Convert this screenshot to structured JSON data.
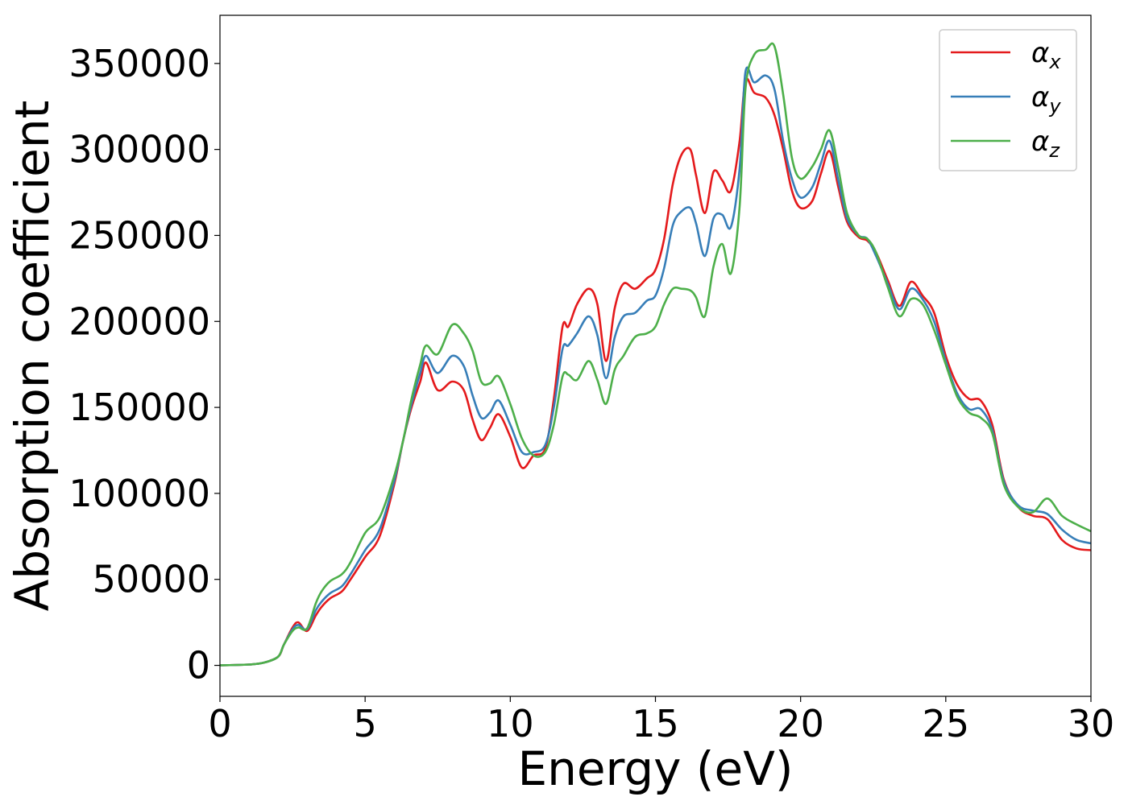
{
  "chart_data": {
    "type": "line",
    "xlabel": "Energy (eV)",
    "ylabel": "Absorption coefficient",
    "xlim": [
      0,
      30
    ],
    "ylim": [
      -18000,
      378000
    ],
    "xticks": [
      0,
      5,
      10,
      15,
      20,
      25,
      30
    ],
    "yticks": [
      0,
      50000,
      100000,
      150000,
      200000,
      250000,
      300000,
      350000
    ],
    "grid": false,
    "legend_position": "top-right",
    "series": [
      {
        "name": "α",
        "subscript": "x",
        "color": "#e41a1c",
        "x": [
          0,
          1,
          1.5,
          2,
          2.2,
          2.5,
          2.7,
          3.0,
          3.3,
          3.5,
          3.8,
          4.2,
          4.5,
          5.0,
          5.5,
          6.0,
          6.3,
          6.6,
          6.9,
          7.1,
          7.5,
          8.0,
          8.4,
          8.7,
          9.0,
          9.3,
          9.6,
          10.0,
          10.4,
          10.8,
          11.2,
          11.5,
          11.8,
          12.0,
          12.3,
          12.7,
          13.0,
          13.3,
          13.6,
          13.9,
          14.3,
          14.7,
          15.0,
          15.3,
          15.6,
          15.9,
          16.2,
          16.4,
          16.7,
          17.0,
          17.3,
          17.6,
          17.9,
          18.1,
          18.4,
          18.8,
          19.1,
          19.4,
          19.7,
          20.0,
          20.4,
          20.7,
          21.0,
          21.3,
          21.6,
          22.0,
          22.3,
          22.6,
          23.0,
          23.4,
          23.8,
          24.2,
          24.6,
          25.0,
          25.4,
          25.8,
          26.2,
          26.6,
          27.0,
          27.5,
          28.0,
          28.5,
          29.0,
          29.5,
          30.0
        ],
        "values": [
          0,
          500,
          1500,
          5000,
          12000,
          22000,
          25000,
          20000,
          29000,
          34000,
          39000,
          43000,
          50000,
          63000,
          75000,
          105000,
          130000,
          150000,
          165000,
          176000,
          160000,
          165000,
          160000,
          143000,
          131000,
          138000,
          146000,
          133000,
          115000,
          122000,
          126000,
          155000,
          197000,
          197000,
          210000,
          219000,
          210000,
          177000,
          208000,
          222000,
          219000,
          225000,
          230000,
          248000,
          280000,
          297000,
          300000,
          285000,
          263000,
          287000,
          282000,
          276000,
          305000,
          340000,
          333000,
          330000,
          320000,
          300000,
          276000,
          266000,
          270000,
          286000,
          299000,
          278000,
          258000,
          249000,
          247000,
          240000,
          224000,
          209000,
          223000,
          215000,
          205000,
          180000,
          163000,
          155000,
          154000,
          140000,
          108000,
          92000,
          87000,
          85000,
          73000,
          68000,
          67000
        ]
      },
      {
        "name": "α",
        "subscript": "y",
        "color": "#377eb8",
        "x": [
          0,
          1,
          1.5,
          2,
          2.2,
          2.5,
          2.7,
          3.0,
          3.3,
          3.5,
          3.8,
          4.2,
          4.5,
          5.0,
          5.5,
          6.0,
          6.3,
          6.6,
          6.9,
          7.1,
          7.5,
          8.0,
          8.4,
          8.7,
          9.0,
          9.3,
          9.6,
          10.0,
          10.4,
          10.8,
          11.2,
          11.5,
          11.8,
          12.0,
          12.3,
          12.7,
          13.0,
          13.3,
          13.6,
          13.9,
          14.3,
          14.7,
          15.0,
          15.3,
          15.6,
          15.9,
          16.2,
          16.4,
          16.7,
          17.0,
          17.3,
          17.6,
          17.9,
          18.1,
          18.4,
          18.8,
          19.1,
          19.4,
          19.7,
          20.0,
          20.4,
          20.7,
          21.0,
          21.3,
          21.6,
          22.0,
          22.3,
          22.6,
          23.0,
          23.4,
          23.8,
          24.2,
          24.6,
          25.0,
          25.4,
          25.8,
          26.2,
          26.6,
          27.0,
          27.5,
          28.0,
          28.5,
          29.0,
          29.5,
          30.0
        ],
        "values": [
          0,
          500,
          1500,
          5000,
          12000,
          21000,
          23500,
          21000,
          32000,
          37000,
          42000,
          46000,
          53000,
          67000,
          79000,
          107000,
          130000,
          152000,
          170000,
          180000,
          170000,
          180000,
          174000,
          157000,
          144000,
          147000,
          154000,
          140000,
          124000,
          124000,
          128000,
          150000,
          184000,
          186000,
          193000,
          203000,
          192000,
          167000,
          191000,
          203000,
          205000,
          212000,
          215000,
          231000,
          256000,
          264000,
          266000,
          257000,
          238000,
          260000,
          262000,
          255000,
          289000,
          345000,
          339000,
          343000,
          335000,
          305000,
          283000,
          272000,
          278000,
          292000,
          305000,
          282000,
          260000,
          250000,
          248000,
          238000,
          222000,
          207000,
          219000,
          213000,
          200000,
          177000,
          158000,
          149000,
          149000,
          137000,
          107000,
          93000,
          90000,
          88000,
          79000,
          73000,
          71000
        ]
      },
      {
        "name": "α",
        "subscript": "z",
        "color": "#4daf4a",
        "x": [
          0,
          1,
          1.5,
          2,
          2.2,
          2.5,
          2.7,
          3.0,
          3.3,
          3.5,
          3.8,
          4.2,
          4.5,
          5.0,
          5.5,
          6.0,
          6.3,
          6.6,
          6.9,
          7.1,
          7.5,
          8.0,
          8.4,
          8.7,
          9.0,
          9.3,
          9.6,
          10.0,
          10.4,
          10.8,
          11.2,
          11.5,
          11.8,
          12.0,
          12.3,
          12.7,
          13.0,
          13.3,
          13.6,
          13.9,
          14.3,
          14.7,
          15.0,
          15.3,
          15.6,
          15.9,
          16.2,
          16.4,
          16.7,
          17.0,
          17.3,
          17.6,
          17.9,
          18.1,
          18.4,
          18.8,
          19.1,
          19.4,
          19.7,
          20.0,
          20.4,
          20.7,
          21.0,
          21.3,
          21.6,
          22.0,
          22.3,
          22.6,
          23.0,
          23.4,
          23.8,
          24.2,
          24.6,
          25.0,
          25.4,
          25.8,
          26.2,
          26.6,
          27.0,
          27.5,
          28.0,
          28.5,
          29.0,
          29.5,
          30.0
        ],
        "values": [
          0,
          500,
          1500,
          5000,
          12000,
          20000,
          22000,
          21500,
          36000,
          43000,
          49000,
          53000,
          60000,
          77000,
          86000,
          110000,
          130000,
          155000,
          175000,
          186000,
          181000,
          198000,
          193000,
          183000,
          165000,
          164000,
          168000,
          152000,
          132000,
          122000,
          124000,
          140000,
          168000,
          169000,
          166000,
          177000,
          166000,
          152000,
          172000,
          180000,
          191000,
          193000,
          197000,
          210000,
          219000,
          219000,
          218000,
          214000,
          203000,
          232000,
          245000,
          228000,
          267000,
          335000,
          355000,
          358000,
          360000,
          332000,
          295000,
          283000,
          290000,
          300000,
          311000,
          289000,
          263000,
          250000,
          248000,
          240000,
          220000,
          203000,
          213000,
          210000,
          195000,
          175000,
          156000,
          147000,
          144000,
          135000,
          105000,
          92000,
          89000,
          97000,
          87000,
          82000,
          78000
        ]
      }
    ]
  }
}
